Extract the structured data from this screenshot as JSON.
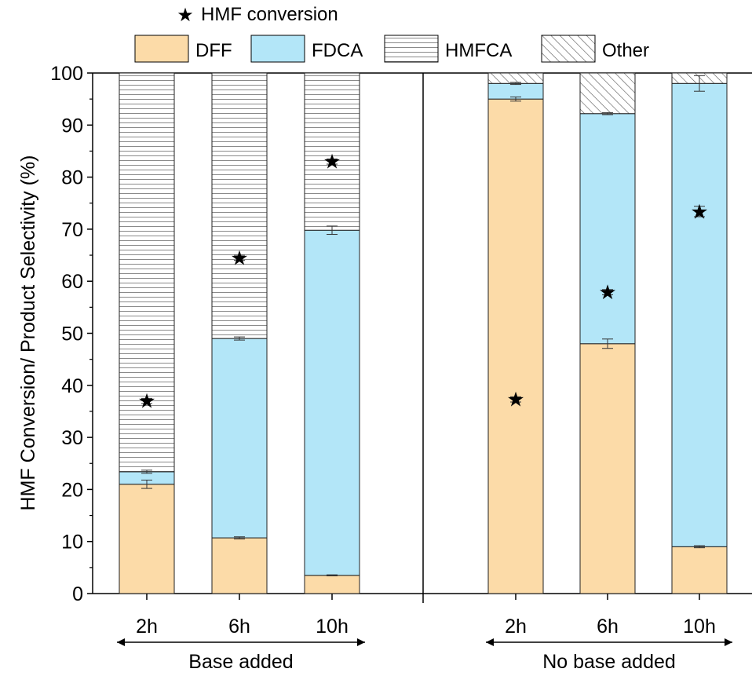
{
  "chart_data": {
    "type": "bar",
    "stacked": true,
    "ylabel": "HMF Conversion/ Product Selectivity (%)",
    "ylim": [
      0,
      100
    ],
    "yticks": [
      0,
      10,
      20,
      30,
      40,
      50,
      60,
      70,
      80,
      90,
      100
    ],
    "grid": false,
    "legend": {
      "position": "top",
      "entries": [
        {
          "key": "conv",
          "label": "HMF conversion",
          "style": "star"
        },
        {
          "key": "DFF",
          "label": "DFF",
          "color": "#fcdba8"
        },
        {
          "key": "FDCA",
          "label": "FDCA",
          "color": "#b3e6f8"
        },
        {
          "key": "HMFCA",
          "label": "HMFCA",
          "color": "#ffffff",
          "pattern": "horizontal-lines"
        },
        {
          "key": "Other",
          "label": "Other",
          "color": "#ffffff",
          "pattern": "diagonal-hatch"
        }
      ]
    },
    "groups": [
      {
        "label": "Base added",
        "categories": [
          "2h",
          "6h",
          "10h"
        ],
        "DFF": [
          21.0,
          10.7,
          3.5
        ],
        "FDCA": [
          2.4,
          38.3,
          66.3
        ],
        "HMFCA": [
          76.6,
          51.0,
          30.2
        ],
        "Other": [
          0,
          0,
          0
        ],
        "conversion": [
          37.0,
          64.5,
          83.0
        ],
        "conversion_err": [
          0.5,
          0.5,
          0.5
        ],
        "top_err": [
          0.3,
          0.3,
          0.8
        ],
        "dff_err": [
          0.8,
          0.2,
          0.1
        ]
      },
      {
        "label": "No base added",
        "categories": [
          "2h",
          "6h",
          "10h"
        ],
        "DFF": [
          95.0,
          48.0,
          9.0
        ],
        "FDCA": [
          3.0,
          44.2,
          89.0
        ],
        "HMFCA": [
          0,
          0,
          0
        ],
        "Other": [
          2.0,
          7.8,
          2.0
        ],
        "conversion": [
          37.3,
          57.9,
          73.4
        ],
        "conversion_err": [
          0.5,
          0.5,
          1.0
        ],
        "top_err": [
          0.2,
          0.2,
          1.5
        ],
        "dff_err": [
          0.4,
          0.9,
          0.2
        ]
      }
    ]
  }
}
